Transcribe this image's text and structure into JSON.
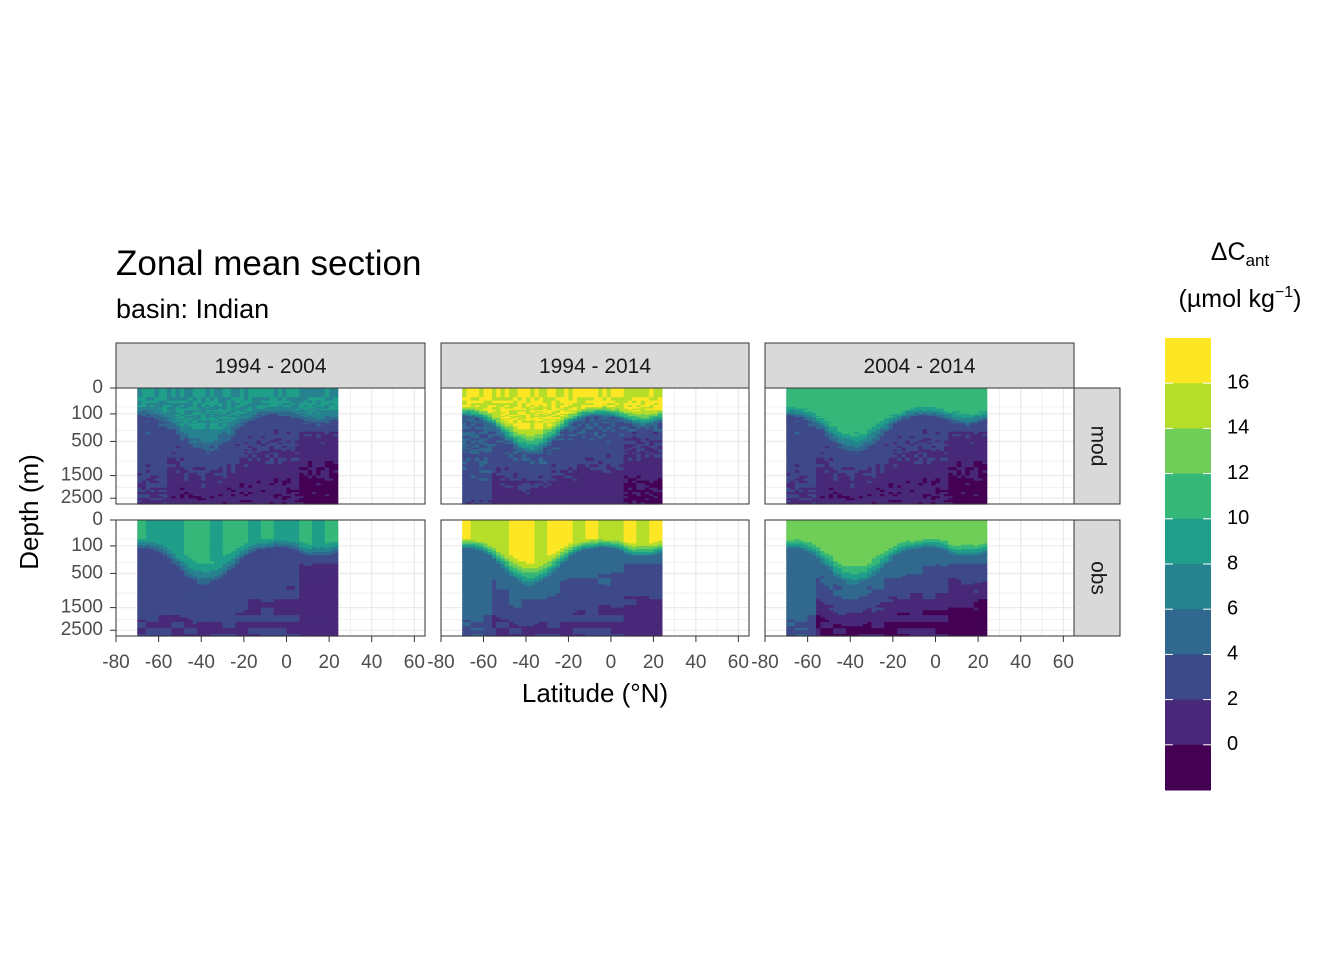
{
  "header": {
    "title": "Zonal mean section",
    "subtitle": "basin: Indian"
  },
  "legend": {
    "title_line1_main": "ΔC",
    "title_line1_sub": "ant",
    "title_line2_start": "(µmol kg",
    "title_line2_sup": "−1",
    "title_line2_end": ")",
    "tick_labels": [
      "16",
      "14",
      "12",
      "10",
      "8",
      "6",
      "4",
      "2",
      "0"
    ],
    "colors": [
      "#fde725",
      "#b5de2b",
      "#6ece58",
      "#35b779",
      "#1f9e89",
      "#26828e",
      "#31688e",
      "#3e4989",
      "#482878",
      "#440154"
    ]
  },
  "chart_data": {
    "type": "heatmap",
    "title": "Zonal mean section",
    "subtitle": "basin: Indian",
    "xlabel": "Latitude (°N)",
    "ylabel": "Depth (m)",
    "xlim": [
      -80,
      65
    ],
    "x_ticks": [
      -80,
      -60,
      -40,
      -20,
      0,
      20,
      40,
      60
    ],
    "x_tick_labels": [
      "-80",
      "-60",
      "-40",
      "-20",
      "0",
      "20",
      "40",
      "60"
    ],
    "y_reversed": true,
    "y_ticks": [
      0,
      100,
      500,
      1500,
      2500
    ],
    "y_tick_labels": [
      "0",
      "100",
      "500",
      "1500",
      "2500"
    ],
    "data_lat_range": [
      -70,
      24
    ],
    "facet_cols": [
      "1994 - 2004",
      "1994 - 2014",
      "2004 - 2014"
    ],
    "facet_rows": [
      "mod",
      "obs"
    ],
    "legend_breaks": [
      0,
      2,
      4,
      6,
      8,
      10,
      12,
      14,
      16
    ],
    "grid": true,
    "legend_position": "right",
    "bin_levels": [
      "≥16",
      "14-16",
      "12-14",
      "10-12",
      "8-10",
      "6-8",
      "4-6",
      "2-4",
      "0-2",
      "<0"
    ],
    "approx_values": [
      {
        "row": "mod",
        "col": "1994 - 2004",
        "surface": 8,
        "intermediate": 3,
        "deep": 0.5
      },
      {
        "row": "mod",
        "col": "1994 - 2014",
        "surface": 16,
        "intermediate": 4,
        "deep": 1
      },
      {
        "row": "mod",
        "col": "2004 - 2014",
        "surface": 11,
        "intermediate": 3,
        "deep": 0.5
      },
      {
        "row": "obs",
        "col": "1994 - 2004",
        "surface": 10,
        "intermediate": 3,
        "deep": 2
      },
      {
        "row": "obs",
        "col": "1994 - 2014",
        "surface": 16,
        "intermediate": 5,
        "deep": 2
      },
      {
        "row": "obs",
        "col": "2004 - 2014",
        "surface": 13,
        "intermediate": 5,
        "deep": 0
      }
    ]
  }
}
